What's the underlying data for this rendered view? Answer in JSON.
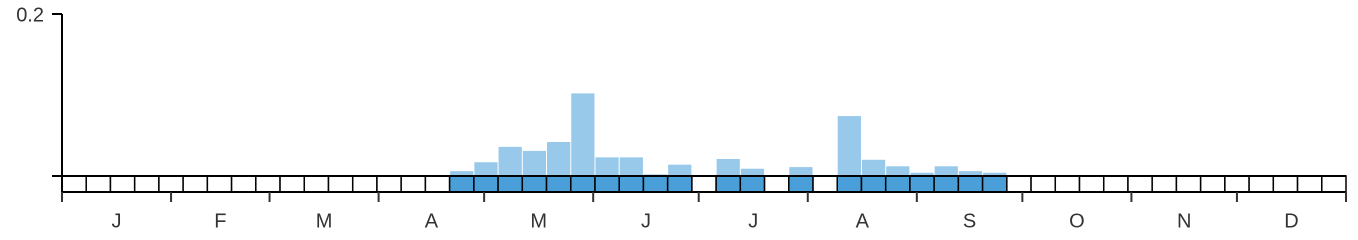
{
  "chart_data": {
    "type": "bar",
    "months": [
      "J",
      "F",
      "M",
      "A",
      "M",
      "J",
      "J",
      "A",
      "S",
      "O",
      "N",
      "D"
    ],
    "values": [
      0,
      0,
      0,
      0,
      0,
      0,
      0,
      0,
      0,
      0,
      0,
      0,
      0,
      0,
      0,
      0,
      0.006,
      0.017,
      0.036,
      0.031,
      0.042,
      0.102,
      0.023,
      0.023,
      0.002,
      0.014,
      0,
      0.021,
      0.009,
      0,
      0.011,
      0,
      0.074,
      0.02,
      0.012,
      0.004,
      0.012,
      0.006,
      0.004,
      0,
      0,
      0,
      0,
      0,
      0,
      0,
      0,
      0,
      0,
      0,
      0,
      0,
      0
    ],
    "color": "#99c9ea",
    "presence_color": "#4a9fd8",
    "ylim": [
      0,
      0.2
    ],
    "yticks": [
      0.2
    ]
  }
}
